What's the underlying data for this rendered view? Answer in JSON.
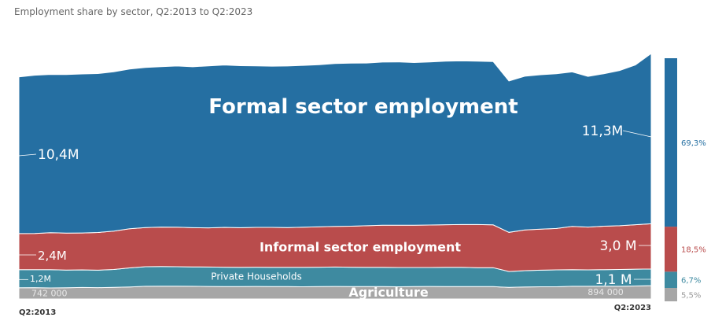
{
  "chart_data": {
    "type": "area",
    "title": "Employment share by sector, Q2:2013 to Q2:2023",
    "x_start_label": "Q2:2013",
    "x_end_label": "Q2:2023",
    "y_axis_visible": false,
    "grid": false,
    "legend": "right-stacked-share-bar",
    "x_count": 41,
    "series": [
      {
        "name": "Agriculture",
        "color": "#a6a6a6",
        "start_label": "742 000",
        "end_label": "894 000",
        "share_label": "5,5%",
        "share": 5.5,
        "values": [
          0.74,
          0.75,
          0.73,
          0.74,
          0.76,
          0.75,
          0.77,
          0.8,
          0.84,
          0.85,
          0.85,
          0.84,
          0.83,
          0.82,
          0.82,
          0.83,
          0.82,
          0.82,
          0.81,
          0.82,
          0.83,
          0.82,
          0.82,
          0.82,
          0.81,
          0.82,
          0.83,
          0.82,
          0.82,
          0.82,
          0.82,
          0.77,
          0.8,
          0.81,
          0.81,
          0.84,
          0.84,
          0.85,
          0.84,
          0.86,
          0.89
        ]
      },
      {
        "name": "Private Households",
        "color": "#3e8aa0",
        "start_label": "1,2M",
        "end_label": "1,1 M",
        "share_label": "6,7%",
        "share": 6.7,
        "values": [
          1.2,
          1.2,
          1.22,
          1.18,
          1.17,
          1.16,
          1.19,
          1.26,
          1.3,
          1.3,
          1.29,
          1.29,
          1.29,
          1.29,
          1.28,
          1.28,
          1.28,
          1.28,
          1.29,
          1.29,
          1.29,
          1.29,
          1.28,
          1.28,
          1.28,
          1.27,
          1.26,
          1.28,
          1.28,
          1.26,
          1.26,
          1.05,
          1.08,
          1.1,
          1.12,
          1.11,
          1.09,
          1.1,
          1.12,
          1.12,
          1.1
        ]
      },
      {
        "name": "Informal sector employment",
        "color": "#b94c4c",
        "start_label": "2,4M",
        "end_label": "3,0 M",
        "share_label": "18,5%",
        "share": 18.5,
        "values": [
          2.4,
          2.4,
          2.45,
          2.45,
          2.45,
          2.5,
          2.54,
          2.6,
          2.6,
          2.62,
          2.62,
          2.6,
          2.6,
          2.64,
          2.63,
          2.64,
          2.65,
          2.64,
          2.66,
          2.68,
          2.7,
          2.72,
          2.76,
          2.8,
          2.8,
          2.8,
          2.82,
          2.83,
          2.84,
          2.86,
          2.84,
          2.6,
          2.7,
          2.72,
          2.75,
          2.87,
          2.84,
          2.88,
          2.9,
          2.95,
          3.0
        ]
      },
      {
        "name": "Formal sector employment",
        "color": "#256fa2",
        "start_label": "10,4M",
        "end_label": "11,3M",
        "share_label": "69,3%",
        "share": 69.3,
        "values": [
          10.4,
          10.5,
          10.5,
          10.52,
          10.55,
          10.55,
          10.58,
          10.6,
          10.62,
          10.65,
          10.7,
          10.68,
          10.75,
          10.78,
          10.75,
          10.72,
          10.7,
          10.72,
          10.74,
          10.76,
          10.8,
          10.82,
          10.8,
          10.82,
          10.84,
          10.8,
          10.82,
          10.85,
          10.86,
          10.84,
          10.84,
          10.05,
          10.2,
          10.25,
          10.27,
          10.25,
          10.0,
          10.12,
          10.3,
          10.6,
          11.3
        ]
      }
    ]
  }
}
